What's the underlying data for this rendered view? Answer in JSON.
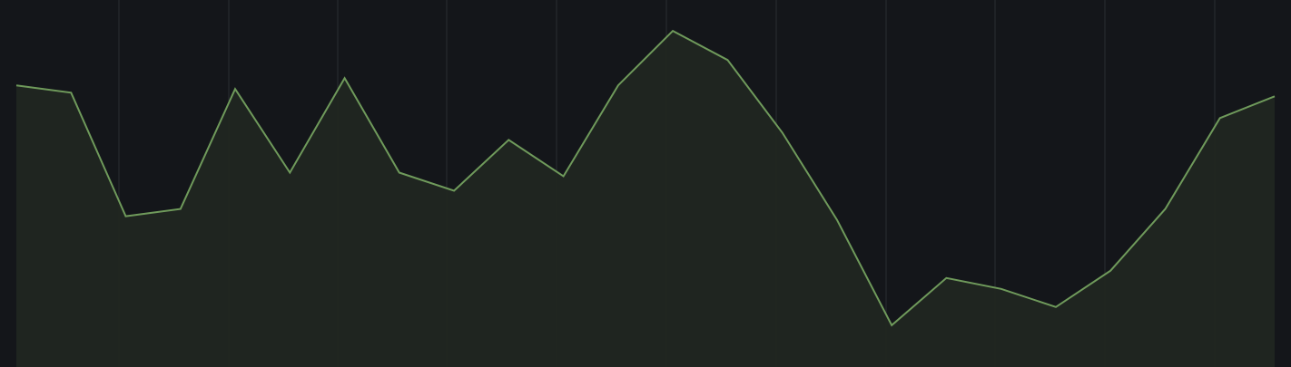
{
  "colors": {
    "background": "#14161a",
    "grid": "#2a2d31",
    "line": "#6f9a5b",
    "fill": "#202621"
  },
  "chart_data": {
    "type": "area",
    "grid": {
      "vertical": true,
      "horizontal": false
    },
    "x": [
      0,
      1,
      2,
      3,
      4,
      5,
      6,
      7,
      8,
      9,
      10,
      11,
      12,
      13,
      14,
      15,
      16,
      17,
      18,
      19,
      20,
      21,
      22,
      23
    ],
    "values": [
      76,
      74,
      40,
      42,
      75,
      52,
      78,
      52,
      47,
      61,
      51,
      76,
      91,
      83,
      63,
      39,
      10,
      23,
      20,
      15,
      25,
      42,
      67,
      73
    ],
    "xlim": [
      0,
      23
    ],
    "ylim": [
      -1.5,
      99.5
    ]
  }
}
